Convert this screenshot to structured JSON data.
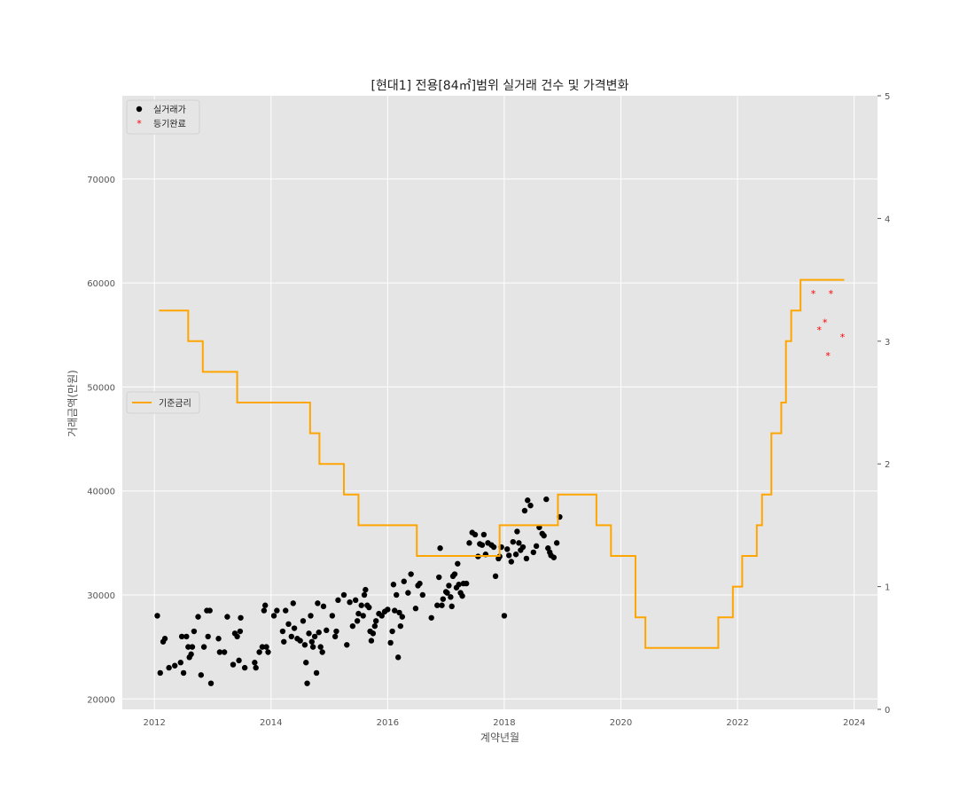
{
  "chart_data": {
    "type": "scatter",
    "title": "[현대1] 전용[84㎡]범위 실거래 건수 및 가격변화",
    "xlabel": "계약년월",
    "ylabel": "거래금액(만원)",
    "xlim": [
      2011.45,
      2024.4
    ],
    "ylim": [
      19000,
      78000
    ],
    "y2lim": [
      0,
      5
    ],
    "x_ticks": [
      2012,
      2014,
      2016,
      2018,
      2020,
      2022,
      2024
    ],
    "y_ticks": [
      20000,
      30000,
      40000,
      50000,
      60000,
      70000
    ],
    "y2_ticks": [
      0,
      1,
      2,
      3,
      4,
      5
    ],
    "grid": true,
    "background": "#e5e5e5",
    "legend_markers": {
      "position": "upper left",
      "entries": [
        "실거래가",
        "등기완료"
      ]
    },
    "legend_line": {
      "position": "center left",
      "entries": [
        "기준금리"
      ]
    },
    "series": [
      {
        "name": "실거래가",
        "kind": "scatter",
        "color": "#000000",
        "points": [
          [
            2012.05,
            28000
          ],
          [
            2012.1,
            22500
          ],
          [
            2012.15,
            25500
          ],
          [
            2012.18,
            25800
          ],
          [
            2012.25,
            23000
          ],
          [
            2012.35,
            23200
          ],
          [
            2012.45,
            23500
          ],
          [
            2012.47,
            26000
          ],
          [
            2012.5,
            22500
          ],
          [
            2012.55,
            26000
          ],
          [
            2012.58,
            25000
          ],
          [
            2012.6,
            24000
          ],
          [
            2012.63,
            24300
          ],
          [
            2012.65,
            25000
          ],
          [
            2012.68,
            26500
          ],
          [
            2012.75,
            27900
          ],
          [
            2012.8,
            22300
          ],
          [
            2012.85,
            25000
          ],
          [
            2012.9,
            28500
          ],
          [
            2012.92,
            26000
          ],
          [
            2012.95,
            28500
          ],
          [
            2012.97,
            21500
          ],
          [
            2013.1,
            25800
          ],
          [
            2013.12,
            24500
          ],
          [
            2013.2,
            24500
          ],
          [
            2013.25,
            27900
          ],
          [
            2013.35,
            23300
          ],
          [
            2013.38,
            26300
          ],
          [
            2013.42,
            26000
          ],
          [
            2013.45,
            23700
          ],
          [
            2013.47,
            26500
          ],
          [
            2013.48,
            27800
          ],
          [
            2013.55,
            23000
          ],
          [
            2013.72,
            23500
          ],
          [
            2013.74,
            23000
          ],
          [
            2013.8,
            24500
          ],
          [
            2013.85,
            25000
          ],
          [
            2013.88,
            28500
          ],
          [
            2013.9,
            29000
          ],
          [
            2013.92,
            25000
          ],
          [
            2013.95,
            24500
          ],
          [
            2014.05,
            28000
          ],
          [
            2014.1,
            28500
          ],
          [
            2014.2,
            26500
          ],
          [
            2014.22,
            25500
          ],
          [
            2014.25,
            28500
          ],
          [
            2014.3,
            27200
          ],
          [
            2014.35,
            26000
          ],
          [
            2014.38,
            29200
          ],
          [
            2014.4,
            26800
          ],
          [
            2014.45,
            25800
          ],
          [
            2014.5,
            25600
          ],
          [
            2014.55,
            27500
          ],
          [
            2014.58,
            25200
          ],
          [
            2014.6,
            23500
          ],
          [
            2014.62,
            21500
          ],
          [
            2014.65,
            26300
          ],
          [
            2014.68,
            28000
          ],
          [
            2014.7,
            25500
          ],
          [
            2014.72,
            25000
          ],
          [
            2014.75,
            26000
          ],
          [
            2014.78,
            22500
          ],
          [
            2014.8,
            29200
          ],
          [
            2014.82,
            26400
          ],
          [
            2014.85,
            25000
          ],
          [
            2014.88,
            24500
          ],
          [
            2014.9,
            28900
          ],
          [
            2014.95,
            26600
          ],
          [
            2015.05,
            28000
          ],
          [
            2015.1,
            26000
          ],
          [
            2015.12,
            26500
          ],
          [
            2015.15,
            29500
          ],
          [
            2015.25,
            30000
          ],
          [
            2015.3,
            25200
          ],
          [
            2015.35,
            29300
          ],
          [
            2015.4,
            27000
          ],
          [
            2015.45,
            29500
          ],
          [
            2015.48,
            27500
          ],
          [
            2015.5,
            28200
          ],
          [
            2015.55,
            29000
          ],
          [
            2015.58,
            28000
          ],
          [
            2015.6,
            30000
          ],
          [
            2015.62,
            30500
          ],
          [
            2015.65,
            29000
          ],
          [
            2015.68,
            28800
          ],
          [
            2015.7,
            26500
          ],
          [
            2015.72,
            25600
          ],
          [
            2015.75,
            26300
          ],
          [
            2015.78,
            27000
          ],
          [
            2015.8,
            27500
          ],
          [
            2015.85,
            28200
          ],
          [
            2015.9,
            28000
          ],
          [
            2015.95,
            28400
          ],
          [
            2016.0,
            28600
          ],
          [
            2016.05,
            25400
          ],
          [
            2016.08,
            26500
          ],
          [
            2016.1,
            31000
          ],
          [
            2016.12,
            28500
          ],
          [
            2016.15,
            30000
          ],
          [
            2016.18,
            24000
          ],
          [
            2016.2,
            28300
          ],
          [
            2016.22,
            27000
          ],
          [
            2016.25,
            27900
          ],
          [
            2016.28,
            31300
          ],
          [
            2016.35,
            30200
          ],
          [
            2016.4,
            32000
          ],
          [
            2016.48,
            28700
          ],
          [
            2016.52,
            30900
          ],
          [
            2016.55,
            31100
          ],
          [
            2016.6,
            30000
          ],
          [
            2016.75,
            27800
          ],
          [
            2016.85,
            29000
          ],
          [
            2016.88,
            31700
          ],
          [
            2016.9,
            34500
          ],
          [
            2016.93,
            29000
          ],
          [
            2016.95,
            29600
          ],
          [
            2017.0,
            30300
          ],
          [
            2017.02,
            30200
          ],
          [
            2017.05,
            30900
          ],
          [
            2017.08,
            29800
          ],
          [
            2017.1,
            28900
          ],
          [
            2017.12,
            31800
          ],
          [
            2017.15,
            32000
          ],
          [
            2017.18,
            30700
          ],
          [
            2017.2,
            33000
          ],
          [
            2017.22,
            31000
          ],
          [
            2017.25,
            30200
          ],
          [
            2017.28,
            29900
          ],
          [
            2017.3,
            31100
          ],
          [
            2017.35,
            31100
          ],
          [
            2017.4,
            35000
          ],
          [
            2017.45,
            36000
          ],
          [
            2017.5,
            35800
          ],
          [
            2017.55,
            33700
          ],
          [
            2017.58,
            34900
          ],
          [
            2017.62,
            34800
          ],
          [
            2017.65,
            35800
          ],
          [
            2017.68,
            33900
          ],
          [
            2017.72,
            35000
          ],
          [
            2017.78,
            34800
          ],
          [
            2017.82,
            34600
          ],
          [
            2017.85,
            31800
          ],
          [
            2017.9,
            33500
          ],
          [
            2017.92,
            33700
          ],
          [
            2017.95,
            34600
          ],
          [
            2018.0,
            28000
          ],
          [
            2018.05,
            34400
          ],
          [
            2018.08,
            33800
          ],
          [
            2018.12,
            33200
          ],
          [
            2018.15,
            35100
          ],
          [
            2018.2,
            33900
          ],
          [
            2018.22,
            36100
          ],
          [
            2018.25,
            35000
          ],
          [
            2018.28,
            34300
          ],
          [
            2018.32,
            34600
          ],
          [
            2018.35,
            38100
          ],
          [
            2018.38,
            33500
          ],
          [
            2018.4,
            39100
          ],
          [
            2018.45,
            38600
          ],
          [
            2018.5,
            34100
          ],
          [
            2018.55,
            34700
          ],
          [
            2018.6,
            36500
          ],
          [
            2018.65,
            35900
          ],
          [
            2018.68,
            35700
          ],
          [
            2018.72,
            39200
          ],
          [
            2018.75,
            34500
          ],
          [
            2018.78,
            34100
          ],
          [
            2018.8,
            33800
          ],
          [
            2018.85,
            33600
          ],
          [
            2018.9,
            35000
          ],
          [
            2018.95,
            37500
          ]
        ]
      },
      {
        "name": "등기완료",
        "kind": "scatter",
        "color": "#ff0000",
        "points": [
          [
            2023.3,
            59000
          ],
          [
            2023.4,
            55500
          ],
          [
            2023.5,
            56200
          ],
          [
            2023.55,
            53000
          ],
          [
            2023.6,
            59000
          ],
          [
            2023.8,
            54800
          ]
        ]
      },
      {
        "name": "기준금리",
        "kind": "step",
        "axis": "right",
        "color": "#ffa500",
        "points": [
          [
            2012.08,
            3.25
          ],
          [
            2012.58,
            3.0
          ],
          [
            2012.83,
            2.75
          ],
          [
            2013.42,
            2.5
          ],
          [
            2014.67,
            2.25
          ],
          [
            2014.83,
            2.0
          ],
          [
            2015.25,
            1.75
          ],
          [
            2015.5,
            1.5
          ],
          [
            2016.5,
            1.25
          ],
          [
            2017.92,
            1.5
          ],
          [
            2018.92,
            1.75
          ],
          [
            2019.58,
            1.5
          ],
          [
            2019.83,
            1.25
          ],
          [
            2020.25,
            0.75
          ],
          [
            2020.42,
            0.5
          ],
          [
            2021.67,
            0.75
          ],
          [
            2021.92,
            1.0
          ],
          [
            2022.08,
            1.25
          ],
          [
            2022.33,
            1.5
          ],
          [
            2022.42,
            1.75
          ],
          [
            2022.58,
            2.25
          ],
          [
            2022.75,
            2.5
          ],
          [
            2022.83,
            3.0
          ],
          [
            2022.92,
            3.25
          ],
          [
            2023.08,
            3.5
          ],
          [
            2023.83,
            3.5
          ]
        ]
      }
    ]
  }
}
